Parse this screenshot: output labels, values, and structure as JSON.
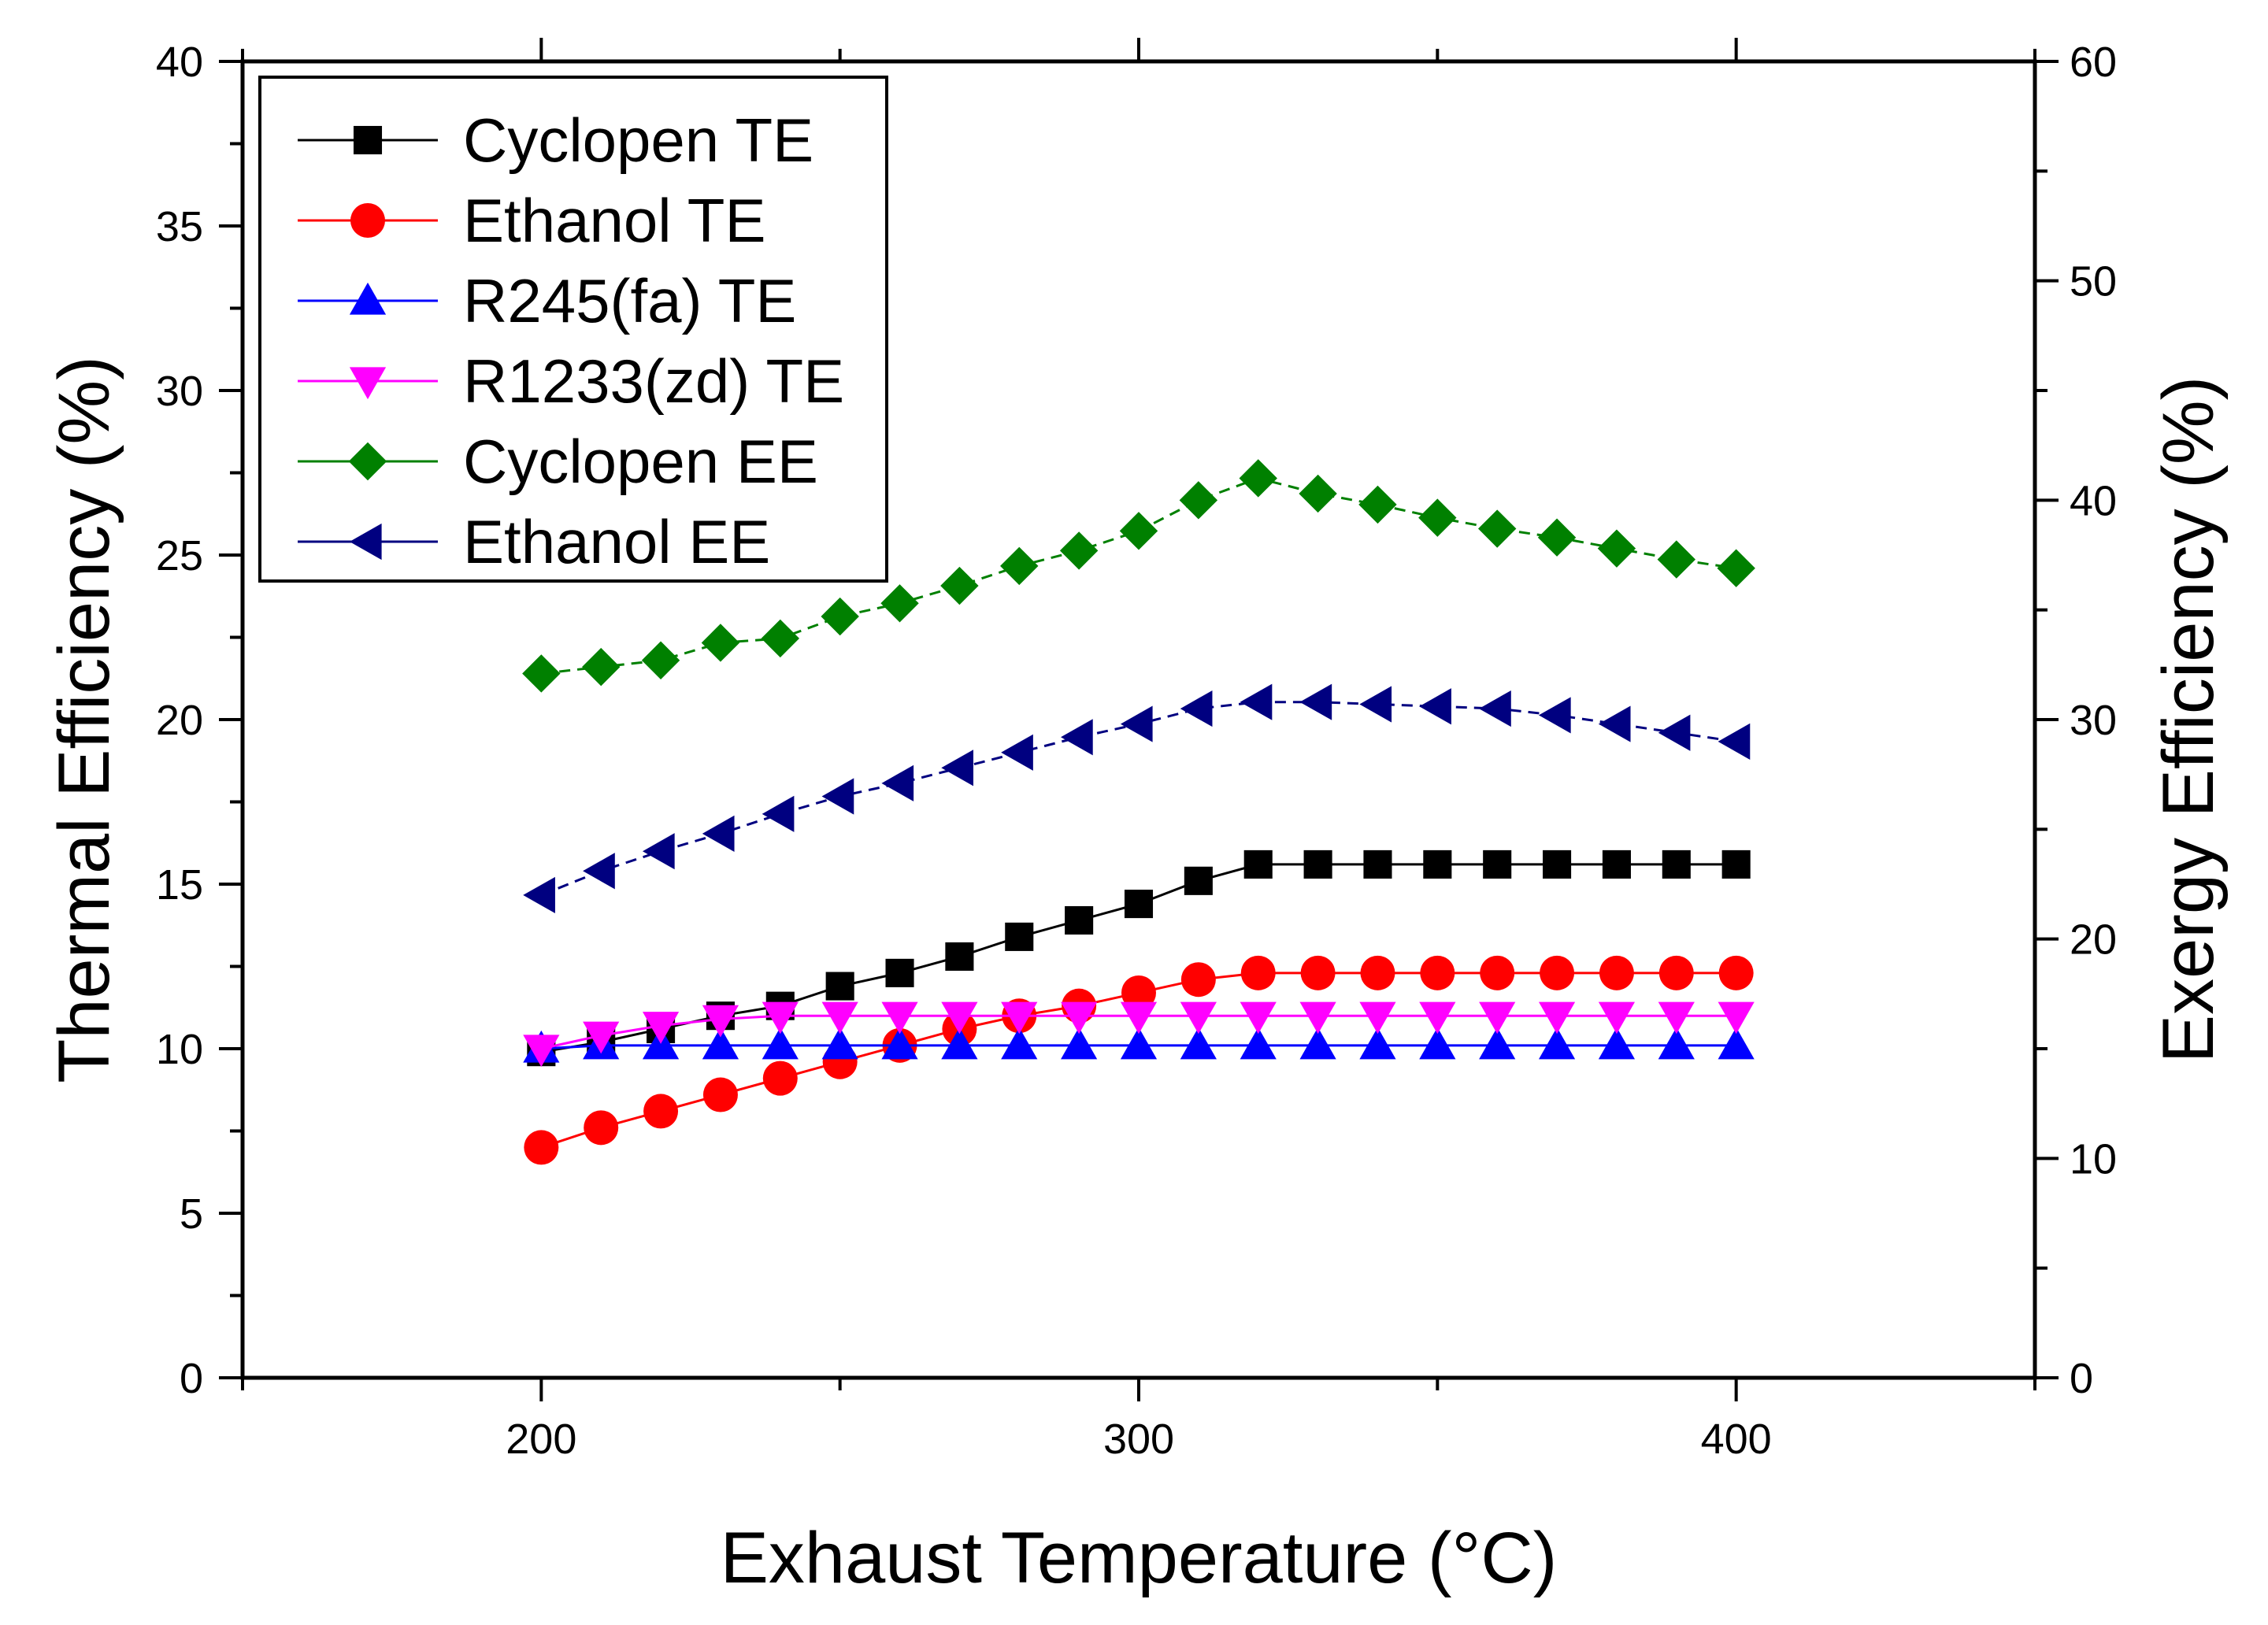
{
  "chart_data": {
    "type": "line",
    "title": "",
    "xlabel": "Exhaust Temperature (°C)",
    "ylabel": "Thermal Efficiency (%)",
    "y2label": "Exergy Efficiency (%)",
    "xlim": [
      150,
      450
    ],
    "ylim": [
      0,
      40
    ],
    "y2lim": [
      0,
      60
    ],
    "x_ticks": [
      200,
      300,
      400
    ],
    "y_ticks": [
      0,
      5,
      10,
      15,
      20,
      25,
      30,
      35,
      40
    ],
    "y2_ticks": [
      0,
      10,
      20,
      30,
      40,
      50,
      60
    ],
    "legend_position": "top-left",
    "x": [
      200,
      210,
      220,
      230,
      240,
      250,
      260,
      270,
      280,
      290,
      300,
      310,
      320,
      330,
      340,
      350,
      360,
      370,
      380,
      390,
      400
    ],
    "series": [
      {
        "name": "Cyclopen TE",
        "axis": "left",
        "color": "#000000",
        "marker": "square",
        "dashed": false,
        "values": [
          9.9,
          10.2,
          10.6,
          11.0,
          11.3,
          11.9,
          12.3,
          12.8,
          13.4,
          13.9,
          14.4,
          15.1,
          15.6,
          15.6,
          15.6,
          15.6,
          15.6,
          15.6,
          15.6,
          15.6,
          15.6
        ]
      },
      {
        "name": "Ethanol TE",
        "axis": "left",
        "color": "#ff0000",
        "marker": "circle",
        "dashed": false,
        "values": [
          7.0,
          7.6,
          8.1,
          8.6,
          9.1,
          9.6,
          10.1,
          10.6,
          11.0,
          11.3,
          11.7,
          12.1,
          12.3,
          12.3,
          12.3,
          12.3,
          12.3,
          12.3,
          12.3,
          12.3,
          12.3
        ]
      },
      {
        "name": "R245(fa) TE",
        "axis": "left",
        "color": "#0000ff",
        "marker": "triangle-up",
        "dashed": false,
        "values": [
          10.0,
          10.1,
          10.1,
          10.1,
          10.1,
          10.1,
          10.1,
          10.1,
          10.1,
          10.1,
          10.1,
          10.1,
          10.1,
          10.1,
          10.1,
          10.1,
          10.1,
          10.1,
          10.1,
          10.1,
          10.1
        ]
      },
      {
        "name": "R1233(zd) TE",
        "axis": "left",
        "color": "#ff00ff",
        "marker": "triangle-down",
        "dashed": false,
        "values": [
          10.0,
          10.4,
          10.7,
          10.9,
          11.0,
          11.0,
          11.0,
          11.0,
          11.0,
          11.0,
          11.0,
          11.0,
          11.0,
          11.0,
          11.0,
          11.0,
          11.0,
          11.0,
          11.0,
          11.0,
          11.0
        ]
      },
      {
        "name": "Cyclopen EE",
        "axis": "right",
        "color": "#008000",
        "marker": "diamond",
        "dashed": true,
        "values": [
          32.1,
          32.4,
          32.7,
          33.5,
          33.7,
          34.7,
          35.3,
          36.1,
          37.0,
          37.7,
          38.6,
          40.0,
          41.0,
          40.3,
          39.8,
          39.2,
          38.7,
          38.3,
          37.8,
          37.3,
          36.9
        ]
      },
      {
        "name": "Ethanol EE",
        "axis": "right",
        "color": "#000080",
        "marker": "triangle-left",
        "dashed": true,
        "values": [
          22.0,
          23.1,
          24.0,
          24.8,
          25.7,
          26.5,
          27.1,
          27.8,
          28.5,
          29.2,
          29.8,
          30.5,
          30.8,
          30.8,
          30.7,
          30.6,
          30.5,
          30.2,
          29.8,
          29.4,
          29.0
        ]
      }
    ]
  }
}
